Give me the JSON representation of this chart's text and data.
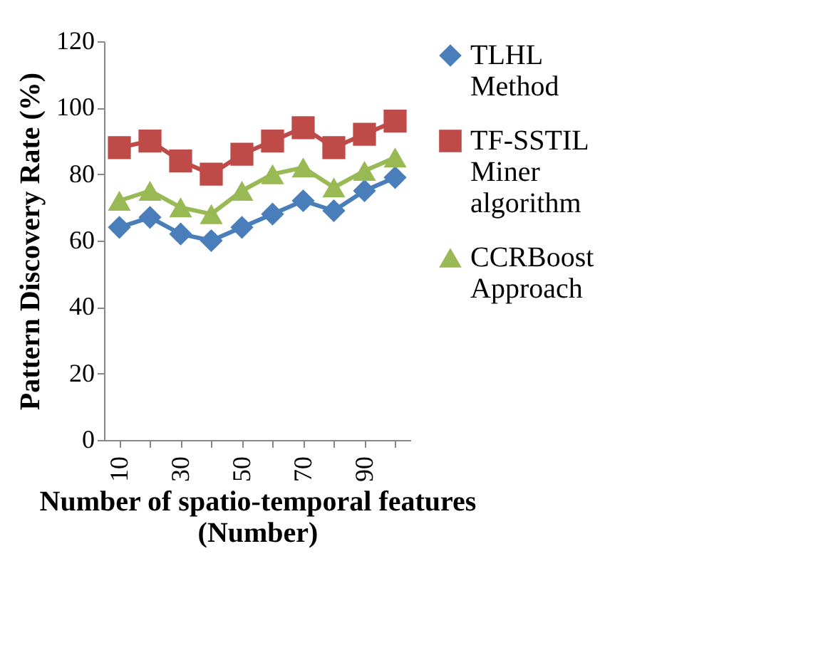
{
  "chart_data": {
    "type": "line",
    "xlabel": "Number of spatio-temporal features (Number)",
    "ylabel": "Pattern Discovery Rate (%)",
    "categories": [
      "10",
      null,
      "30",
      null,
      "50",
      null,
      "70",
      null,
      "90",
      null
    ],
    "series": [
      {
        "name": "TLHL Method",
        "color": "#4a7ebb",
        "marker": "diamond",
        "values": [
          64,
          67,
          62,
          60,
          64,
          68,
          72,
          69,
          75,
          79
        ]
      },
      {
        "name": "TF-SSTIL Miner algorithm",
        "color": "#be4b48",
        "marker": "square",
        "values": [
          88,
          90,
          84,
          80,
          86,
          90,
          94,
          88,
          92,
          96
        ]
      },
      {
        "name": "CCRBoost Approach",
        "color": "#98b954",
        "marker": "triangle",
        "values": [
          72,
          75,
          70,
          68,
          75,
          80,
          82,
          76,
          81,
          85
        ]
      }
    ],
    "ylim": [
      0,
      120
    ],
    "yticks": [
      0,
      20,
      40,
      60,
      80,
      100,
      120
    ],
    "grid": false,
    "legend": "right",
    "line_style": "solid"
  }
}
